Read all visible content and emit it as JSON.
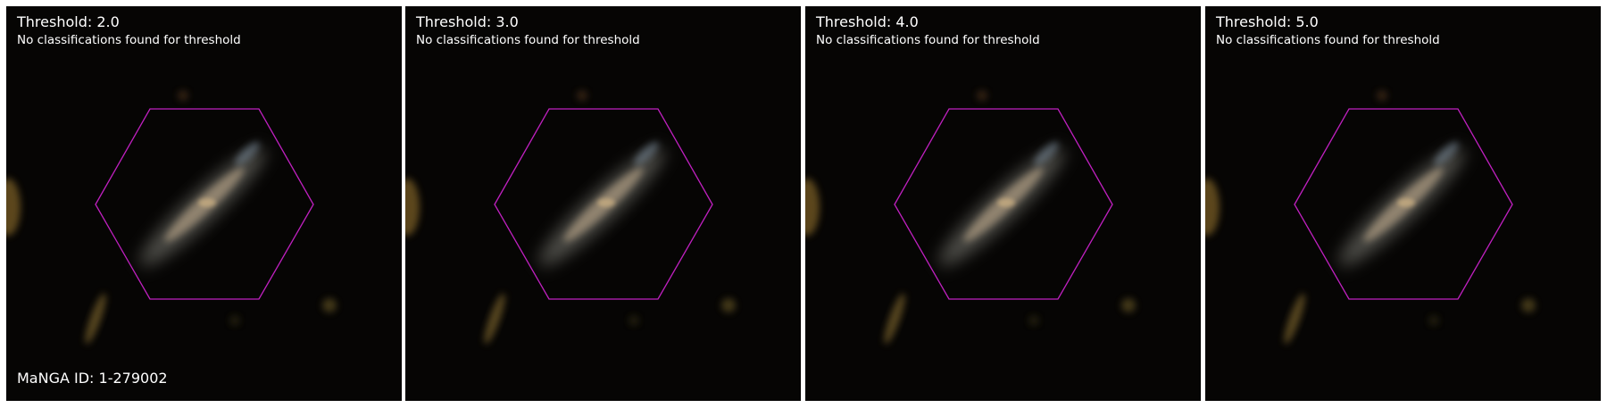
{
  "panels": [
    {
      "threshold_label": "Threshold: 2.0",
      "message": "No classifications found for threshold"
    },
    {
      "threshold_label": "Threshold: 3.0",
      "message": "No classifications found for threshold"
    },
    {
      "threshold_label": "Threshold: 4.0",
      "message": "No classifications found for threshold"
    },
    {
      "threshold_label": "Threshold: 5.0",
      "message": "No classifications found for threshold"
    }
  ],
  "manga_id_label": "MaNGA ID: 1-279002",
  "colors": {
    "background": "#060504",
    "hexagon": "#c020c0",
    "text": "#ffffff"
  },
  "icons": {
    "footprint": "hexagon-footprint-icon",
    "galaxy": "galaxy-image"
  }
}
